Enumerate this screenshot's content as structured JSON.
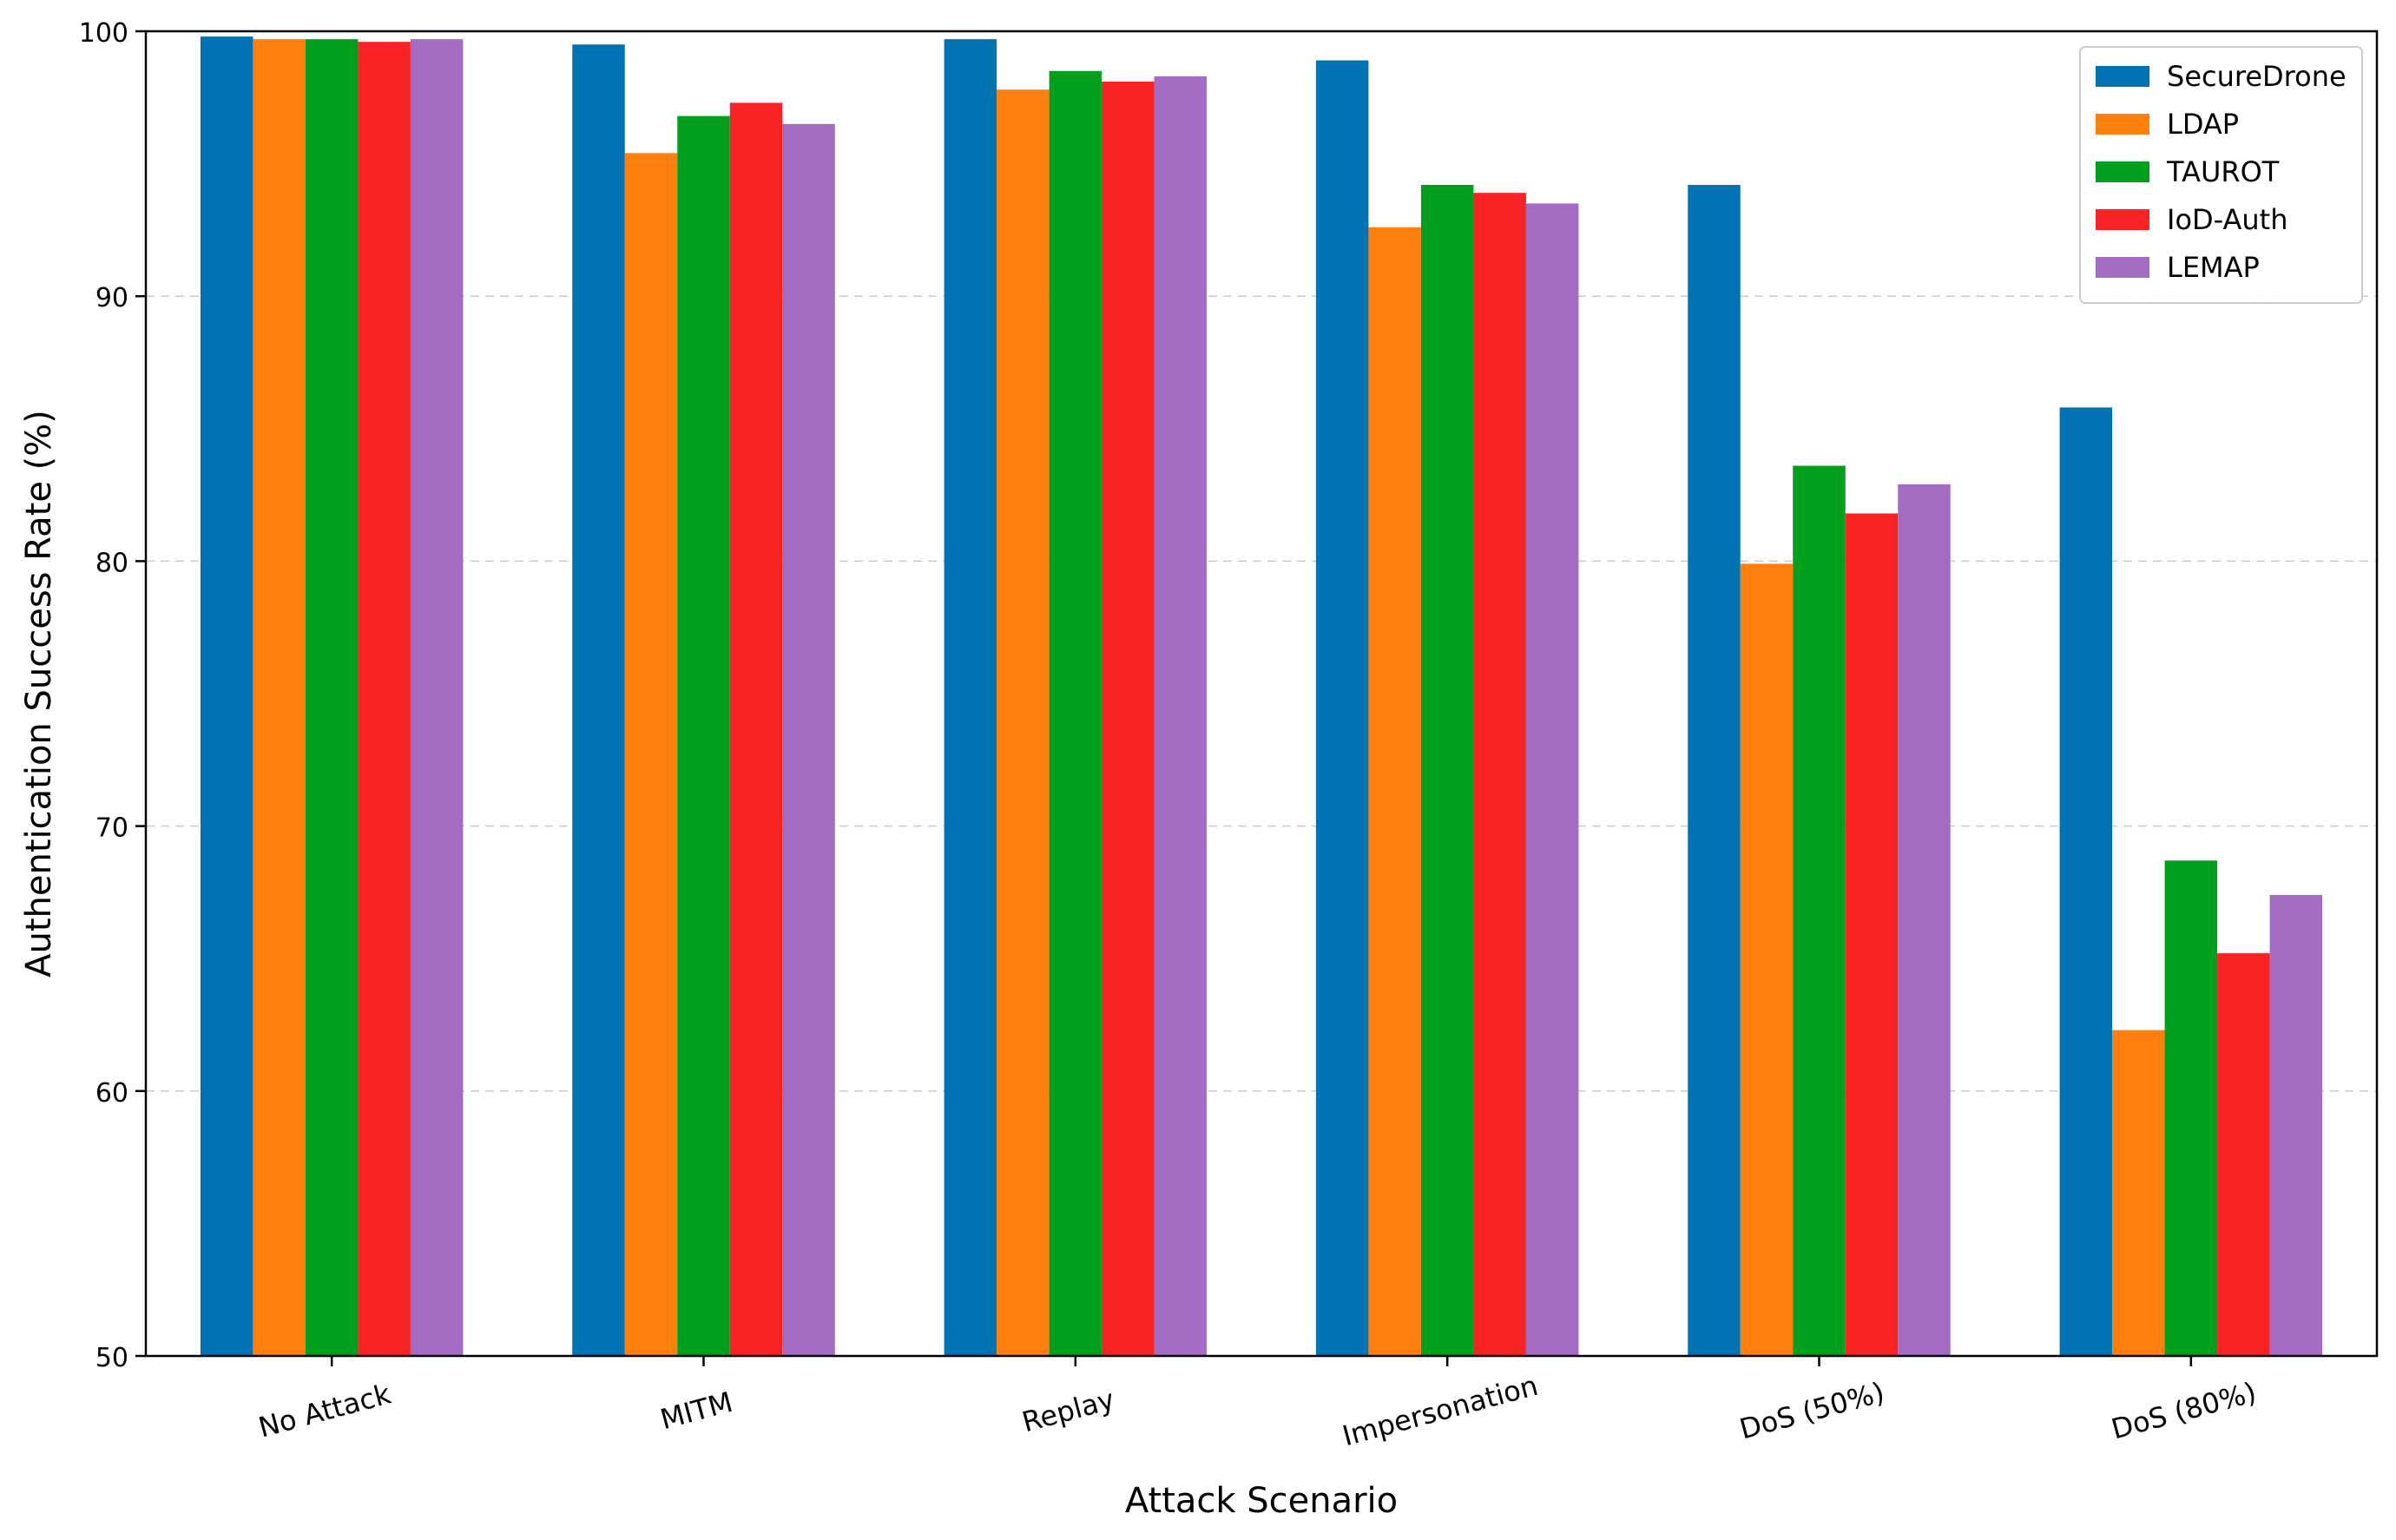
{
  "chart_data": {
    "type": "bar",
    "title": "",
    "xlabel": "Attack Scenario",
    "ylabel": "Authentication Success Rate (%)",
    "ylim": [
      50,
      100
    ],
    "yticks": [
      50,
      60,
      70,
      80,
      90,
      100
    ],
    "grid": "horizontal dashed",
    "legend_position": "top-right",
    "categories": [
      "No Attack",
      "MITM",
      "Replay",
      "Impersonation",
      "DoS (50%)",
      "DoS (80%)"
    ],
    "series": [
      {
        "name": "SecureDrone",
        "color": "#0173b2",
        "values": [
          99.8,
          99.5,
          99.7,
          98.9,
          94.2,
          85.8
        ]
      },
      {
        "name": "LDAP",
        "color": "#fe7f0e",
        "values": [
          99.7,
          95.4,
          97.8,
          92.6,
          79.9,
          62.3
        ]
      },
      {
        "name": "TAUROT",
        "color": "#029e1d",
        "values": [
          99.7,
          96.8,
          98.5,
          94.2,
          83.6,
          68.7
        ]
      },
      {
        "name": "IoD-Auth",
        "color": "#f72325",
        "values": [
          99.6,
          97.3,
          98.1,
          93.9,
          81.8,
          65.2
        ]
      },
      {
        "name": "LEMAP",
        "color": "#a36bc2",
        "values": [
          99.7,
          96.5,
          98.3,
          93.5,
          82.9,
          67.4
        ]
      }
    ]
  }
}
